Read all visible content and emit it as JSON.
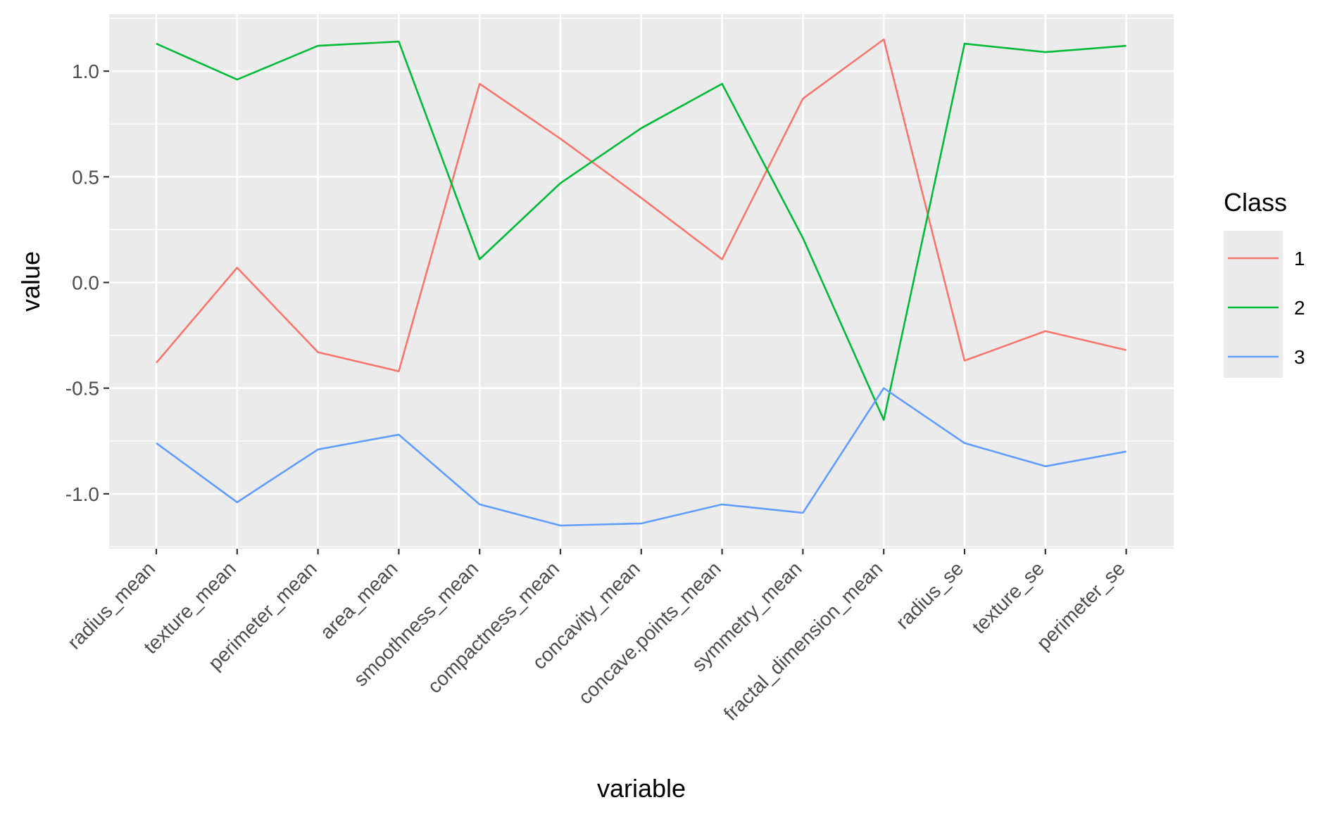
{
  "chart_data": {
    "type": "line",
    "xlabel": "variable",
    "ylabel": "value",
    "categories": [
      "radius_mean",
      "texture_mean",
      "perimeter_mean",
      "area_mean",
      "smoothness_mean",
      "compactness_mean",
      "concavity_mean",
      "concave.points_mean",
      "symmetry_mean",
      "fractal_dimension_mean",
      "radius_se",
      "texture_se",
      "perimeter_se"
    ],
    "y_ticks": [
      "-1.0",
      "-0.5",
      "0.0",
      "0.5",
      "1.0"
    ],
    "ylim": [
      -1.26,
      1.27
    ],
    "grid": true,
    "legend": {
      "title": "Class",
      "position": "right"
    },
    "series": [
      {
        "name": "1",
        "color": "#F8766D",
        "values": [
          -0.38,
          0.07,
          -0.33,
          -0.42,
          0.94,
          0.68,
          0.4,
          0.11,
          0.87,
          1.15,
          -0.37,
          -0.23,
          -0.32
        ]
      },
      {
        "name": "2",
        "color": "#00BA38",
        "values": [
          1.13,
          0.96,
          1.12,
          1.14,
          0.11,
          0.47,
          0.73,
          0.94,
          0.21,
          -0.65,
          1.13,
          1.09,
          1.12
        ]
      },
      {
        "name": "3",
        "color": "#619CFF",
        "values": [
          -0.76,
          -1.04,
          -0.79,
          -0.72,
          -1.05,
          -1.15,
          -1.14,
          -1.05,
          -1.09,
          -0.5,
          -0.76,
          -0.87,
          -0.8
        ]
      }
    ]
  }
}
